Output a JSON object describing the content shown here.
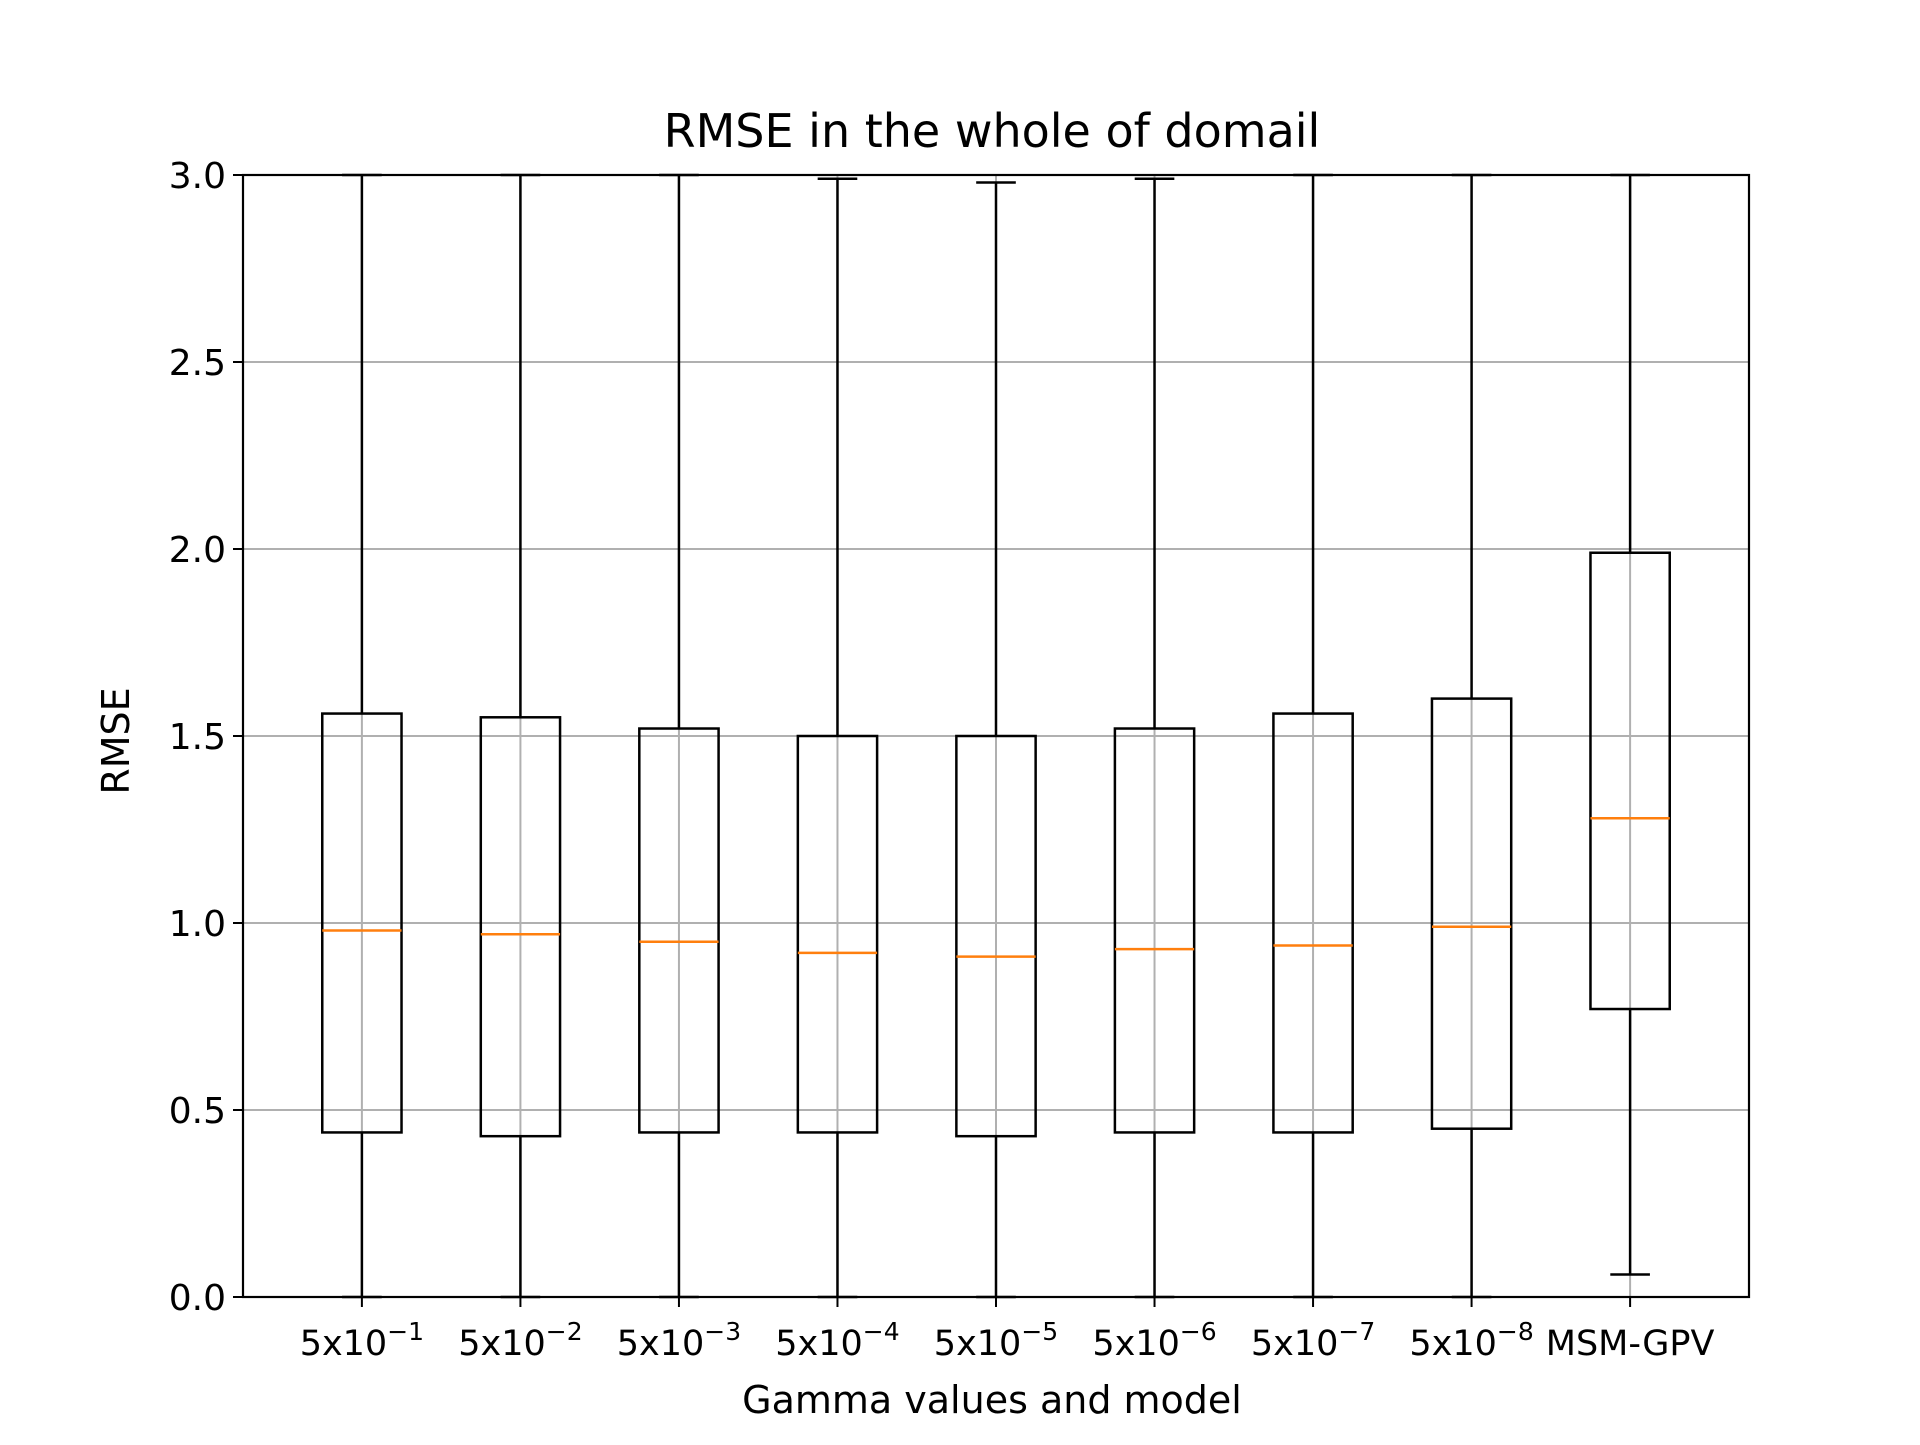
{
  "chart_data": {
    "type": "boxplot",
    "title": "RMSE in the whole of domail",
    "xlabel": "Gamma values and model",
    "ylabel": "RMSE",
    "ylim": [
      0,
      3.0
    ],
    "yticks": [
      "0.0",
      "0.5",
      "1.0",
      "1.5",
      "2.0",
      "2.5",
      "3.0"
    ],
    "grid": true,
    "categories": [
      {
        "base": "5x10",
        "exp": "−1"
      },
      {
        "base": "5x10",
        "exp": "−2"
      },
      {
        "base": "5x10",
        "exp": "−3"
      },
      {
        "base": "5x10",
        "exp": "−4"
      },
      {
        "base": "5x10",
        "exp": "−5"
      },
      {
        "base": "5x10",
        "exp": "−6"
      },
      {
        "base": "5x10",
        "exp": "−7"
      },
      {
        "base": "5x10",
        "exp": "−8"
      },
      {
        "base": "MSM-GPV",
        "exp": ""
      }
    ],
    "boxes": [
      {
        "whislo": 0.0,
        "q1": 0.44,
        "med": 0.98,
        "q3": 1.56,
        "whishi": 3.0
      },
      {
        "whislo": 0.0,
        "q1": 0.43,
        "med": 0.97,
        "q3": 1.55,
        "whishi": 3.0
      },
      {
        "whislo": 0.0,
        "q1": 0.44,
        "med": 0.95,
        "q3": 1.52,
        "whishi": 3.0
      },
      {
        "whislo": 0.0,
        "q1": 0.44,
        "med": 0.92,
        "q3": 1.5,
        "whishi": 2.99
      },
      {
        "whislo": 0.0,
        "q1": 0.43,
        "med": 0.91,
        "q3": 1.5,
        "whishi": 2.98
      },
      {
        "whislo": 0.0,
        "q1": 0.44,
        "med": 0.93,
        "q3": 1.52,
        "whishi": 2.99
      },
      {
        "whislo": 0.0,
        "q1": 0.44,
        "med": 0.94,
        "q3": 1.56,
        "whishi": 3.0
      },
      {
        "whislo": 0.0,
        "q1": 0.45,
        "med": 0.99,
        "q3": 1.6,
        "whishi": 3.0
      },
      {
        "whislo": 0.06,
        "q1": 0.77,
        "med": 1.28,
        "q3": 1.99,
        "whishi": 3.0
      }
    ],
    "colors": {
      "box": "#000000",
      "median": "#ff7f0e",
      "grid": "#b0b0b0"
    }
  }
}
